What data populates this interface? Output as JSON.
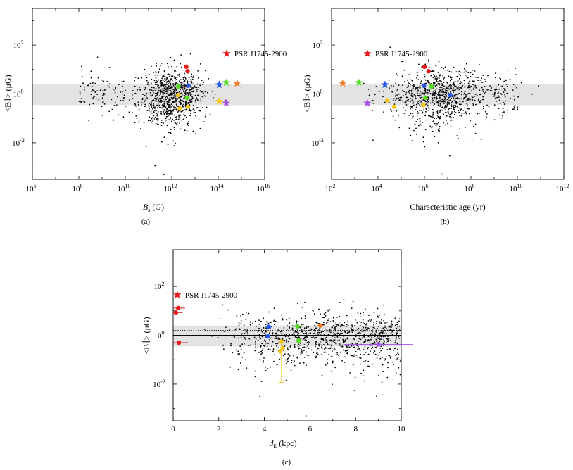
{
  "chart_data": [
    {
      "type": "scatter",
      "panel_label": "(a)",
      "xscale": "log",
      "yscale": "log",
      "xlim_exp": [
        6,
        16
      ],
      "ylim_exp": [
        -3.5,
        3.5
      ],
      "xticks_exp": [
        6,
        8,
        10,
        12,
        14,
        16
      ],
      "yticks_exp": [
        -2,
        0,
        2
      ],
      "xlabel_main": "B",
      "xlabel_sub": "s",
      "xlabel_unit": " (G)",
      "ylabel": "<B∥> (μG)",
      "band": [
        0.35,
        2.5
      ],
      "mean_line": 1.0,
      "dotted_line": 1.6,
      "cloud": {
        "count": 900,
        "center_log": 12.0,
        "spread_log": 0.7,
        "tail_start": 8.0,
        "tail_end": 10.0,
        "tail_count": 90
      },
      "highlights": [
        {
          "label": "PSR J1745-2900",
          "marker": "star",
          "color": "#e41a1c",
          "x": 230000000000000.0,
          "y": 45
        },
        {
          "marker": "circle",
          "color": "#e41a1c",
          "x": 4200000000000.0,
          "y": 13
        },
        {
          "marker": "circle",
          "color": "#e41a1c",
          "x": 4800000000000.0,
          "y": 8.5
        },
        {
          "marker": "star",
          "color": "#2457e6",
          "x": 110000000000000.0,
          "y": 2.4
        },
        {
          "marker": "star",
          "color": "#55dd22",
          "x": 220000000000000.0,
          "y": 2.9
        },
        {
          "marker": "star",
          "color": "#f07d2b",
          "x": 650000000000000.0,
          "y": 2.7
        },
        {
          "marker": "star",
          "color": "#f5c518",
          "x": 110000000000000.0,
          "y": 0.5
        },
        {
          "marker": "star",
          "color": "#a44ee8",
          "x": 220000000000000.0,
          "y": 0.42
        },
        {
          "marker": "circle",
          "color": "#2457e6",
          "x": 5200000000000.0,
          "y": 2.2
        },
        {
          "marker": "circle",
          "color": "#55dd22",
          "x": 1900000000000.0,
          "y": 2.0
        },
        {
          "marker": "circle",
          "color": "#55dd22",
          "x": 4500000000000.0,
          "y": 0.7
        },
        {
          "marker": "circle",
          "color": "#f5c518",
          "x": 1900000000000.0,
          "y": 0.9
        },
        {
          "marker": "circle",
          "color": "#f5c518",
          "x": 2200000000000.0,
          "y": 0.25
        },
        {
          "marker": "circle",
          "color": "#f5c518",
          "x": 5000000000000.0,
          "y": 0.3
        }
      ]
    },
    {
      "type": "scatter",
      "panel_label": "(b)",
      "xscale": "log",
      "yscale": "log",
      "xlim_exp": [
        2,
        12
      ],
      "ylim_exp": [
        -3.5,
        3.5
      ],
      "xticks_exp": [
        2,
        4,
        6,
        8,
        10,
        12
      ],
      "yticks_exp": [
        -2,
        0,
        2
      ],
      "xlabel_main": "Characteristic age (yr)",
      "xlabel_sub": "",
      "xlabel_unit": "",
      "ylabel": "<B∥> (μG)",
      "band": [
        0.35,
        2.5
      ],
      "mean_line": 1.0,
      "dotted_line": 1.6,
      "cloud": {
        "count": 900,
        "center_log": 6.7,
        "spread_log": 1.1,
        "tail_start": 9.0,
        "tail_end": 10.2,
        "tail_count": 60
      },
      "highlights": [
        {
          "label": "PSR J1745-2900",
          "marker": "star",
          "color": "#e41a1c",
          "x": 3500.0,
          "y": 45
        },
        {
          "marker": "circle",
          "color": "#e41a1c",
          "x": 1000000.0,
          "y": 13
        },
        {
          "marker": "circle",
          "color": "#e41a1c",
          "x": 1500000.0,
          "y": 8.5
        },
        {
          "marker": "star",
          "color": "#f07d2b",
          "x": 300.0,
          "y": 2.7
        },
        {
          "marker": "star",
          "color": "#55dd22",
          "x": 1500.0,
          "y": 2.9
        },
        {
          "marker": "star",
          "color": "#2457e6",
          "x": 20000.0,
          "y": 2.4
        },
        {
          "marker": "star",
          "color": "#a44ee8",
          "x": 3500.0,
          "y": 0.42
        },
        {
          "marker": "circle",
          "color": "#2457e6",
          "x": 950000.0,
          "y": 2.2
        },
        {
          "marker": "circle",
          "color": "#55dd22",
          "x": 2000000.0,
          "y": 2.0
        },
        {
          "marker": "circle",
          "color": "#55dd22",
          "x": 1100000.0,
          "y": 0.7
        },
        {
          "marker": "circle",
          "color": "#f5c518",
          "x": 25000.0,
          "y": 0.55
        },
        {
          "marker": "circle",
          "color": "#f5c518",
          "x": 50000.0,
          "y": 0.3
        },
        {
          "marker": "circle",
          "color": "#f5c518",
          "x": 900000.0,
          "y": 0.35
        },
        {
          "marker": "circle",
          "color": "#2457e6",
          "x": 13000000.0,
          "y": 0.9
        }
      ]
    },
    {
      "type": "scatter",
      "panel_label": "(c)",
      "xscale": "linear",
      "yscale": "log",
      "xlim": [
        0,
        10
      ],
      "ylim_exp": [
        -3.5,
        3.5
      ],
      "xticks": [
        0,
        2,
        4,
        6,
        8,
        10
      ],
      "yticks_exp": [
        -2,
        0,
        2
      ],
      "xlabel_main": "d",
      "xlabel_sub": "E",
      "xlabel_unit": " (kpc)",
      "ylabel": "<B∥> (μG)",
      "band": [
        0.35,
        2.5
      ],
      "mean_line": 1.0,
      "dotted_line": 1.6,
      "cloud": {
        "count": 1000,
        "x_start": 2.5,
        "x_end": 10.0
      },
      "highlights": [
        {
          "label": "PSR J1745-2900",
          "marker": "star",
          "color": "#e41a1c",
          "x": 0.18,
          "y": 45
        },
        {
          "marker": "circle",
          "color": "#e41a1c",
          "x": 0.22,
          "y": 13,
          "xerr": 0.3
        },
        {
          "marker": "circle",
          "color": "#e41a1c",
          "x": 0.12,
          "y": 8.5,
          "xerr": 0.3
        },
        {
          "marker": "circle",
          "color": "#e41a1c",
          "x": 0.25,
          "y": 0.5,
          "xerr": 0.4
        },
        {
          "marker": "circle",
          "color": "#2457e6",
          "x": 4.2,
          "y": 2.2,
          "xerr": 0.15
        },
        {
          "marker": "circle",
          "color": "#2457e6",
          "x": 4.15,
          "y": 0.9,
          "xerr": 0.1
        },
        {
          "marker": "circle",
          "color": "#55dd22",
          "x": 5.45,
          "y": 2.3,
          "xerr": 0.2
        },
        {
          "marker": "circle",
          "color": "#55dd22",
          "x": 5.5,
          "y": 0.6,
          "xerr": 0.15
        },
        {
          "marker": "circle",
          "color": "#f07d2b",
          "x": 6.45,
          "y": 2.5,
          "xerr": 0.15
        },
        {
          "marker": "circle",
          "color": "#a44ee8",
          "x": 9.0,
          "y": 0.42,
          "xerr": 1.5
        },
        {
          "marker": "circle",
          "color": "#f5c518",
          "x": 4.75,
          "y": 0.55,
          "yerr_low": 0.012,
          "yerr_high": 0.7
        },
        {
          "marker": "circle",
          "color": "#f5c518",
          "x": 4.8,
          "y": 0.3
        },
        {
          "marker": "circle",
          "color": "#f5c518",
          "x": 4.7,
          "y": 0.22
        }
      ]
    }
  ]
}
